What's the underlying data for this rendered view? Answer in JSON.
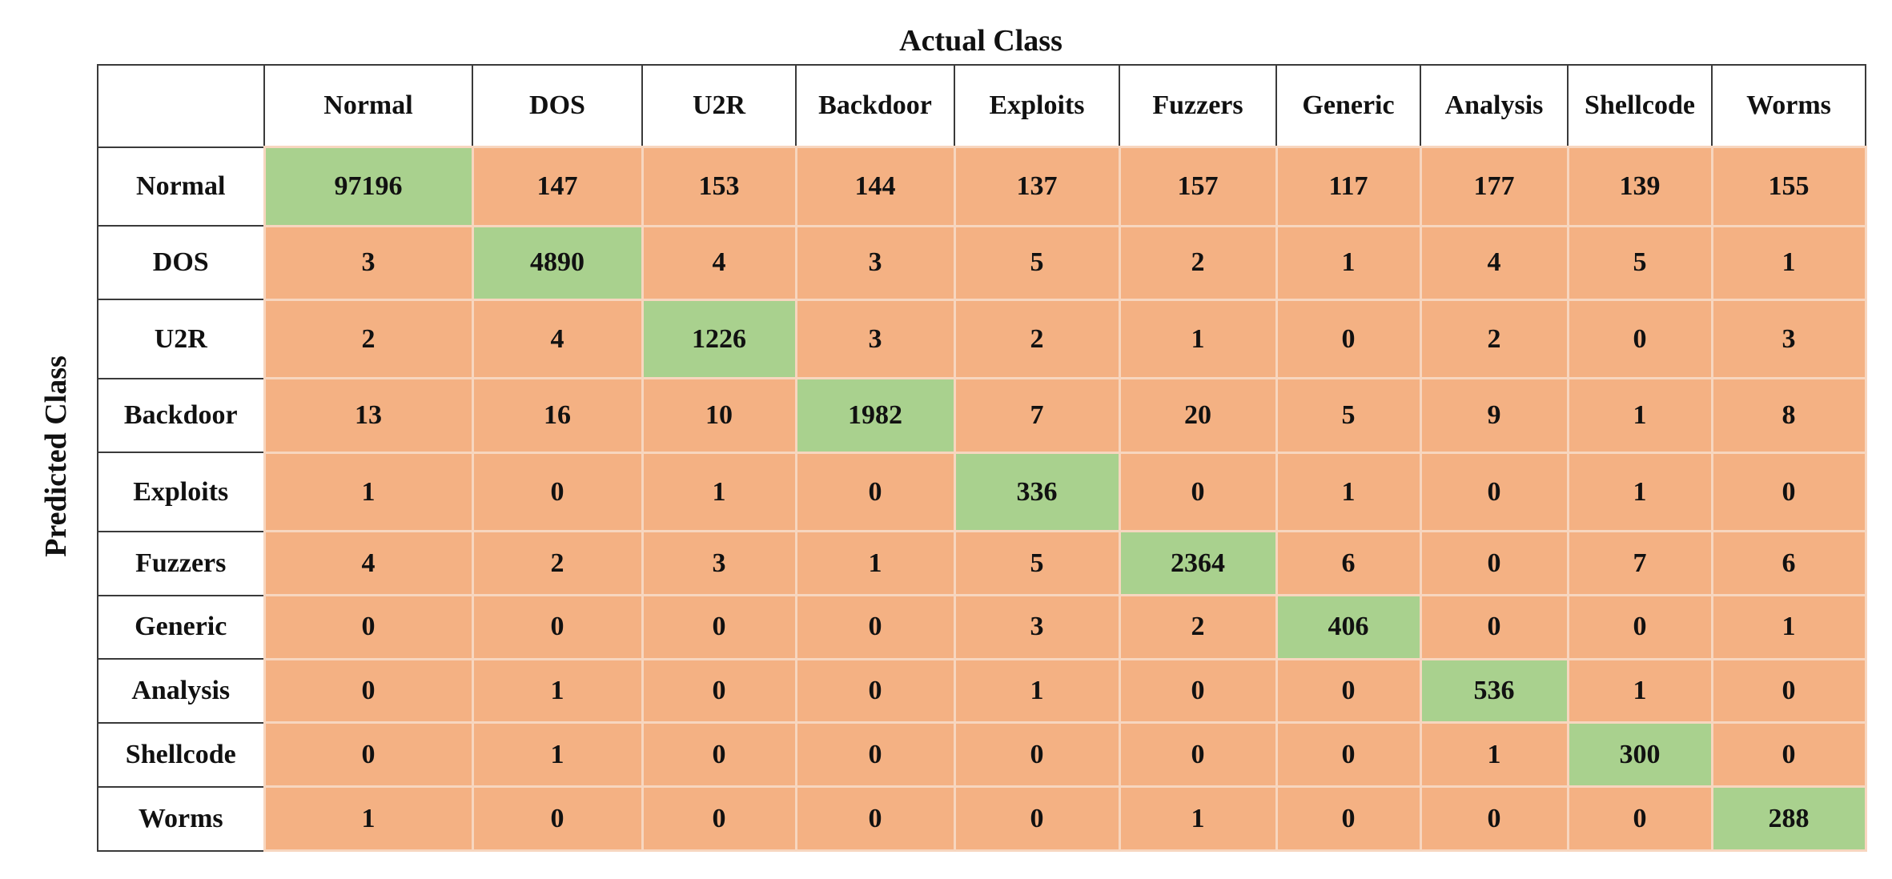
{
  "chart_data": {
    "type": "heatmap",
    "title": "Actual Class",
    "ylabel": "Predicted Class",
    "x_categories": [
      "Normal",
      "DOS",
      "U2R",
      "Backdoor",
      "Exploits",
      "Fuzzers",
      "Generic",
      "Analysis",
      "Shellcode",
      "Worms"
    ],
    "y_categories": [
      "Normal",
      "DOS",
      "U2R",
      "Backdoor",
      "Exploits",
      "Fuzzers",
      "Generic",
      "Analysis",
      "Shellcode",
      "Worms"
    ],
    "matrix": [
      [
        97196,
        147,
        153,
        144,
        137,
        157,
        117,
        177,
        139,
        155
      ],
      [
        3,
        4890,
        4,
        3,
        5,
        2,
        1,
        4,
        5,
        1
      ],
      [
        2,
        4,
        1226,
        3,
        2,
        1,
        0,
        2,
        0,
        3
      ],
      [
        13,
        16,
        10,
        1982,
        7,
        20,
        5,
        9,
        1,
        8
      ],
      [
        1,
        0,
        1,
        0,
        336,
        0,
        1,
        0,
        1,
        0
      ],
      [
        4,
        2,
        3,
        1,
        5,
        2364,
        6,
        0,
        7,
        6
      ],
      [
        0,
        0,
        0,
        0,
        3,
        2,
        406,
        0,
        0,
        1
      ],
      [
        0,
        1,
        0,
        0,
        1,
        0,
        0,
        536,
        1,
        0
      ],
      [
        0,
        1,
        0,
        0,
        0,
        0,
        0,
        1,
        300,
        0
      ],
      [
        1,
        0,
        0,
        0,
        0,
        1,
        0,
        0,
        0,
        288
      ]
    ]
  },
  "colors": {
    "diagonal": "#a9d18e",
    "off_diagonal": "#f4b183",
    "header_background": "#ffffff"
  }
}
